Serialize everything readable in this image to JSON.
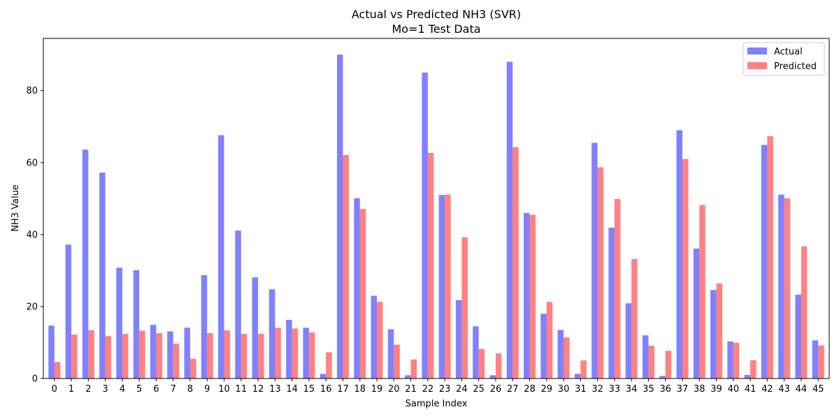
{
  "chart_data": {
    "type": "bar",
    "title": "Actual vs Predicted NH3 (SVR)",
    "subtitle": "Mo=1 Test Data",
    "xlabel": "Sample Index",
    "ylabel": "NH3 Value",
    "ylim": [
      0,
      94.5
    ],
    "yticks": [
      0,
      20,
      40,
      60,
      80
    ],
    "grid": false,
    "legend_position": "top-right",
    "categories": [
      "0",
      "1",
      "2",
      "3",
      "4",
      "5",
      "6",
      "7",
      "8",
      "9",
      "10",
      "11",
      "12",
      "13",
      "14",
      "15",
      "16",
      "17",
      "18",
      "19",
      "20",
      "21",
      "22",
      "23",
      "24",
      "25",
      "26",
      "27",
      "28",
      "29",
      "30",
      "31",
      "32",
      "33",
      "34",
      "35",
      "36",
      "37",
      "38",
      "39",
      "40",
      "41",
      "42",
      "43",
      "44",
      "45"
    ],
    "series": [
      {
        "name": "Actual",
        "color": "#4b4bff",
        "values": [
          14.7,
          37.2,
          63.6,
          57.2,
          30.8,
          30.1,
          14.9,
          13.1,
          14.1,
          28.7,
          67.6,
          41.1,
          28.1,
          24.8,
          16.3,
          14.1,
          1.3,
          90.0,
          50.1,
          23.0,
          13.7,
          0.9,
          85.0,
          51.0,
          21.8,
          14.5,
          0.9,
          88.0,
          46.0,
          18.0,
          13.5,
          1.3,
          65.5,
          41.9,
          20.9,
          12.0,
          0.7,
          69.0,
          36.1,
          24.6,
          10.3,
          1.0,
          64.9,
          51.1,
          23.3,
          10.6
        ]
      },
      {
        "name": "Predicted",
        "color": "#ff4b4b",
        "values": [
          4.6,
          12.2,
          13.4,
          11.8,
          12.4,
          13.3,
          12.6,
          9.7,
          5.5,
          12.6,
          13.4,
          12.4,
          12.4,
          14.1,
          13.9,
          12.8,
          7.3,
          62.1,
          47.1,
          21.3,
          9.4,
          5.3,
          62.7,
          51.1,
          39.2,
          8.2,
          7.0,
          64.3,
          45.5,
          21.3,
          11.4,
          5.0,
          58.7,
          49.9,
          33.2,
          9.1,
          7.7,
          61.0,
          48.2,
          26.4,
          9.9,
          5.1,
          67.3,
          50.1,
          36.7,
          9.2
        ]
      }
    ]
  }
}
